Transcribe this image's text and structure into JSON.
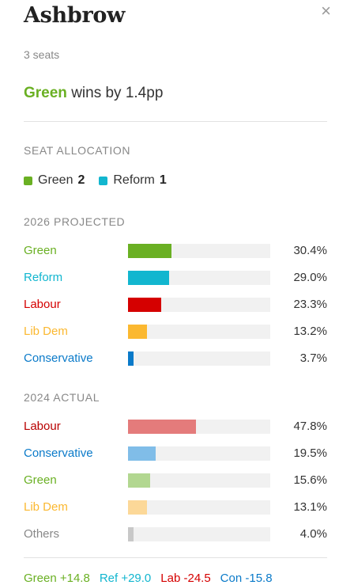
{
  "panel": {
    "title": "Ashbrow",
    "close_glyph": "×",
    "seats": "3 seats",
    "headline": {
      "party": "Green",
      "party_color": "#6ab023",
      "text": "wins by 1.4pp"
    }
  },
  "allocation": {
    "title": "SEAT ALLOCATION",
    "items": [
      {
        "party": "Green",
        "seats": "2",
        "color": "#6ab023"
      },
      {
        "party": "Reform",
        "seats": "1",
        "color": "#12b6cf"
      }
    ]
  },
  "projected": {
    "title": "2026 PROJECTED",
    "rows": [
      {
        "party": "Green",
        "value": 30.4,
        "label": "30.4%",
        "color": "#6ab023"
      },
      {
        "party": "Reform",
        "value": 29.0,
        "label": "29.0%",
        "color": "#12b6cf"
      },
      {
        "party": "Labour",
        "value": 23.3,
        "label": "23.3%",
        "color": "#d50000"
      },
      {
        "party": "Lib Dem",
        "value": 13.2,
        "label": "13.2%",
        "color": "#fbb830"
      },
      {
        "party": "Conservative",
        "value": 3.7,
        "label": "3.7%",
        "color": "#0a7ac9"
      }
    ]
  },
  "actual": {
    "title": "2024 ACTUAL",
    "rows": [
      {
        "party": "Labour",
        "value": 47.8,
        "label": "47.8%",
        "color": "#b80000",
        "bar_color": "#e47b7b"
      },
      {
        "party": "Conservative",
        "value": 19.5,
        "label": "19.5%",
        "color": "#0a7ac9",
        "bar_color": "#80bde8"
      },
      {
        "party": "Green",
        "value": 15.6,
        "label": "15.6%",
        "color": "#6ab023",
        "bar_color": "#b2d790"
      },
      {
        "party": "Lib Dem",
        "value": 13.1,
        "label": "13.1%",
        "color": "#fbb830",
        "bar_color": "#fcd898"
      },
      {
        "party": "Others",
        "value": 4.0,
        "label": "4.0%",
        "color": "#888888",
        "bar_color": "#c8c8c8"
      }
    ]
  },
  "changes": [
    {
      "text": "Green +14.8",
      "color": "#6ab023"
    },
    {
      "text": "Ref +29.0",
      "color": "#12b6cf"
    },
    {
      "text": "Lab -24.5",
      "color": "#d50000"
    },
    {
      "text": "Con -15.8",
      "color": "#0a7ac9"
    }
  ]
}
